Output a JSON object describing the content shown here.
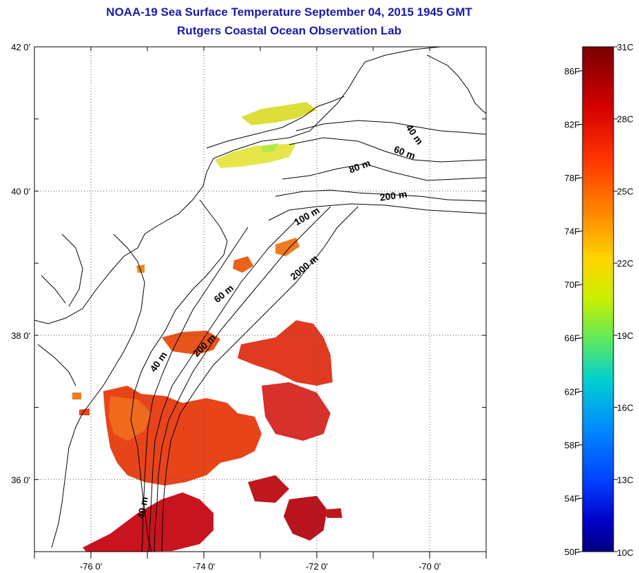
{
  "header": {
    "title": "NOAA-19 Sea Surface Temperature September 04, 2015 1945 GMT",
    "subtitle": "Rutgers Coastal Ocean Observation Lab"
  },
  "map": {
    "lat_labels": [
      {
        "text": "42 0'",
        "lat": 42
      },
      {
        "text": "40 0'",
        "lat": 40
      },
      {
        "text": "38 0'",
        "lat": 38
      },
      {
        "text": "36 0'",
        "lat": 36
      }
    ],
    "lon_labels": [
      {
        "text": "-76 0'",
        "lon": -76
      },
      {
        "text": "-74 0'",
        "lon": -74
      },
      {
        "text": "-72 0'",
        "lon": -72
      },
      {
        "text": "-70 0'",
        "lon": -70
      }
    ],
    "extent": {
      "lon_min": -77,
      "lon_max": -69,
      "lat_min": 35,
      "lat_max": 42
    },
    "grid": true,
    "isobath_labels": [
      "40 m",
      "60 m",
      "80 m",
      "200 m",
      "100 m",
      "2000 m",
      "60 m",
      "200 m",
      "40 m",
      "40 m"
    ]
  },
  "colorbar": {
    "celsius_labels": [
      "31C",
      "28C",
      "25C",
      "22C",
      "19C",
      "16C",
      "13C",
      "10C"
    ],
    "fahrenheit_labels": [
      "86F",
      "82F",
      "78F",
      "74F",
      "70F",
      "66F",
      "62F",
      "58F",
      "54F",
      "50F"
    ],
    "colors": [
      "#7a0000",
      "#d40000",
      "#ff3300",
      "#ff8800",
      "#ffd500",
      "#c8f000",
      "#5de85d",
      "#00d0d0",
      "#0088ff",
      "#0040ff",
      "#0000c8",
      "#000080"
    ]
  }
}
